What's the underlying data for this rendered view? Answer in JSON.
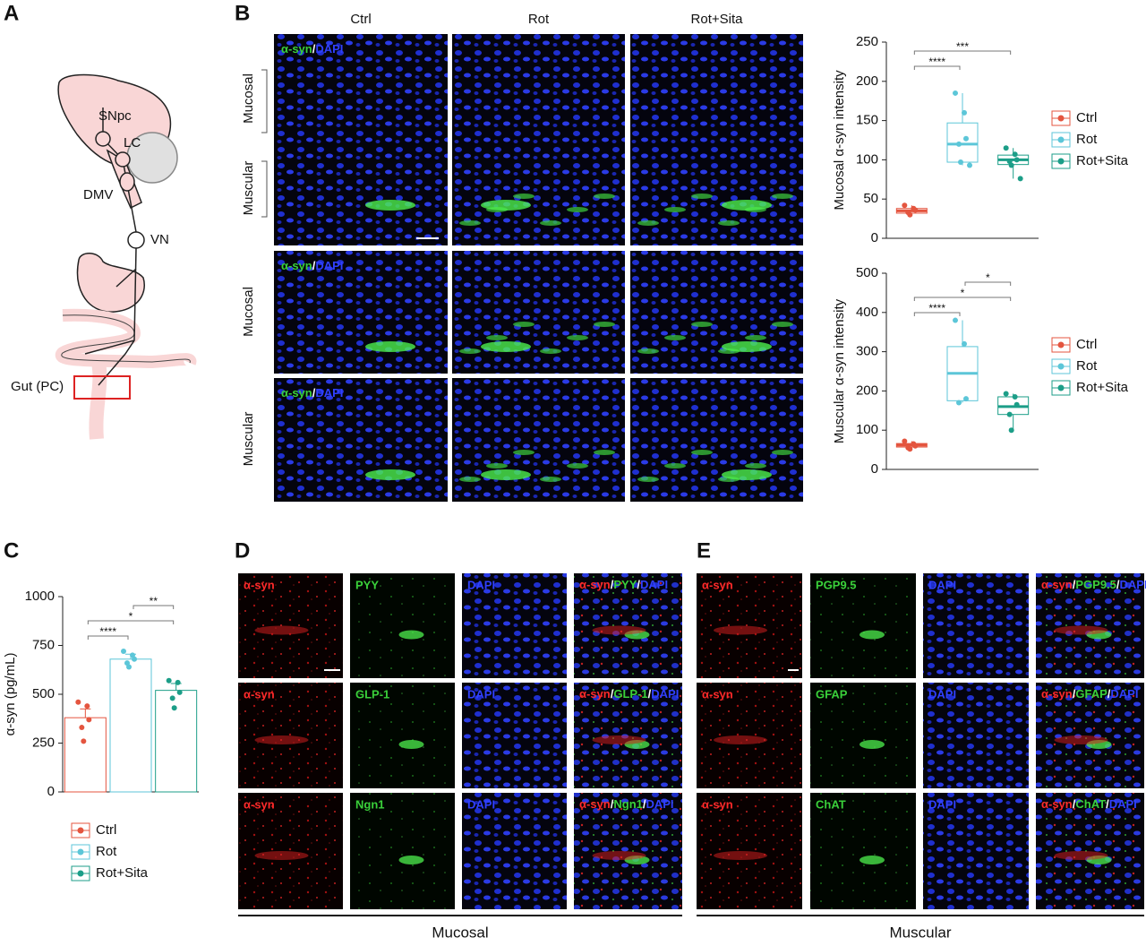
{
  "panel_labels": [
    "A",
    "B",
    "C",
    "D",
    "E"
  ],
  "diagram": {
    "labels": [
      "SNpc",
      "LC",
      "DMV",
      "VN",
      "Gut (PC)"
    ]
  },
  "images": {
    "columns": [
      "Ctrl",
      "Rot",
      "Rot+Sita"
    ],
    "rows": [
      [
        "Mucosal",
        "Muscular"
      ],
      [
        "Mucosal"
      ],
      [
        "Muscular"
      ]
    ],
    "stain": [
      "α-syn",
      "/",
      "DAPI"
    ]
  },
  "chart_data": [
    {
      "type": "box",
      "ylabel": "Mucosal α-syn intensity",
      "categories": [
        "Ctrl",
        "Rot",
        "Rot+Sita"
      ],
      "colors": [
        "#e4553f",
        "#5cc6d8",
        "#1c9e88"
      ],
      "boxes": [
        {
          "min": 30,
          "q1": 32,
          "median": 35,
          "q3": 38,
          "max": 42,
          "points": [
            42,
            38,
            36,
            33,
            30
          ]
        },
        {
          "min": 93,
          "q1": 97,
          "median": 120,
          "q3": 147,
          "max": 185,
          "points": [
            185,
            160,
            127,
            120,
            97,
            93
          ]
        },
        {
          "min": 76,
          "q1": 94,
          "median": 100,
          "q3": 106,
          "max": 115,
          "points": [
            115,
            107,
            100,
            98,
            93,
            76
          ]
        }
      ],
      "ylim": [
        0,
        250
      ],
      "yticks": [
        0,
        50,
        100,
        150,
        200,
        250
      ],
      "legend": "right",
      "significance": [
        {
          "from": 0,
          "to": 1,
          "label": "****"
        },
        {
          "from": 0,
          "to": 2,
          "label": "***"
        }
      ]
    },
    {
      "type": "box",
      "ylabel": "Muscular α-syn intensity",
      "categories": [
        "Ctrl",
        "Rot",
        "Rot+Sita"
      ],
      "colors": [
        "#e4553f",
        "#5cc6d8",
        "#1c9e88"
      ],
      "boxes": [
        {
          "min": 52,
          "q1": 57,
          "median": 62,
          "q3": 66,
          "max": 72,
          "points": [
            72,
            65,
            60,
            55,
            52
          ]
        },
        {
          "min": 170,
          "q1": 175,
          "median": 245,
          "q3": 313,
          "max": 380,
          "points": [
            380,
            320,
            180,
            170
          ]
        },
        {
          "min": 100,
          "q1": 140,
          "median": 160,
          "q3": 185,
          "max": 193,
          "points": [
            193,
            185,
            165,
            140,
            100
          ]
        }
      ],
      "ylim": [
        0,
        500
      ],
      "yticks": [
        0,
        100,
        200,
        300,
        400,
        500
      ],
      "legend": "right",
      "significance": [
        {
          "from": 0,
          "to": 1,
          "label": "****"
        },
        {
          "from": 0,
          "to": 2,
          "label": "*"
        },
        {
          "from": 1,
          "to": 2,
          "label": "*"
        }
      ]
    },
    {
      "type": "bar",
      "ylabel": "α-syn (pg/mL)",
      "categories": [
        "Ctrl",
        "Rot",
        "Rot+Sita"
      ],
      "colors": [
        "#e4553f",
        "#5cc6d8",
        "#1c9e88"
      ],
      "values": [
        380,
        680,
        520
      ],
      "errors": [
        45,
        25,
        35
      ],
      "points": [
        [
          460,
          440,
          370,
          330,
          260
        ],
        [
          720,
          700,
          680,
          660,
          640
        ],
        [
          570,
          560,
          510,
          480,
          430
        ]
      ],
      "ylim": [
        0,
        1000
      ],
      "yticks": [
        0,
        250,
        500,
        750,
        1000
      ],
      "legend": "bottom",
      "significance": [
        {
          "from": 0,
          "to": 1,
          "label": "****"
        },
        {
          "from": 0,
          "to": 2,
          "label": "*"
        },
        {
          "from": 1,
          "to": 2,
          "label": "**"
        }
      ]
    }
  ],
  "panel_d": {
    "rows": [
      [
        "α-syn",
        "PYY",
        "DAPI",
        [
          "α-syn",
          "/",
          "PYY",
          "/",
          "DAPI"
        ]
      ],
      [
        "α-syn",
        "GLP-1",
        "DAPI",
        [
          "α-syn",
          "/",
          "GLP-1",
          "/",
          "DAPI"
        ]
      ],
      [
        "α-syn",
        "Ngn1",
        "DAPI",
        [
          "α-syn",
          "/",
          "Ngn1",
          "/",
          "DAPI"
        ]
      ]
    ],
    "footer": "Mucosal"
  },
  "panel_e": {
    "rows": [
      [
        "α-syn",
        "PGP9.5",
        "DAPI",
        [
          "α-syn",
          "/",
          "PGP9.5",
          "/",
          "DAPI"
        ]
      ],
      [
        "α-syn",
        "GFAP",
        "DAPI",
        [
          "α-syn",
          "/",
          "GFAP",
          "/",
          "DAPI"
        ]
      ],
      [
        "α-syn",
        "ChAT",
        "DAPI",
        [
          "α-syn",
          "/",
          "ChAT",
          "/",
          "DAPI"
        ]
      ]
    ],
    "footer": "Muscular"
  }
}
